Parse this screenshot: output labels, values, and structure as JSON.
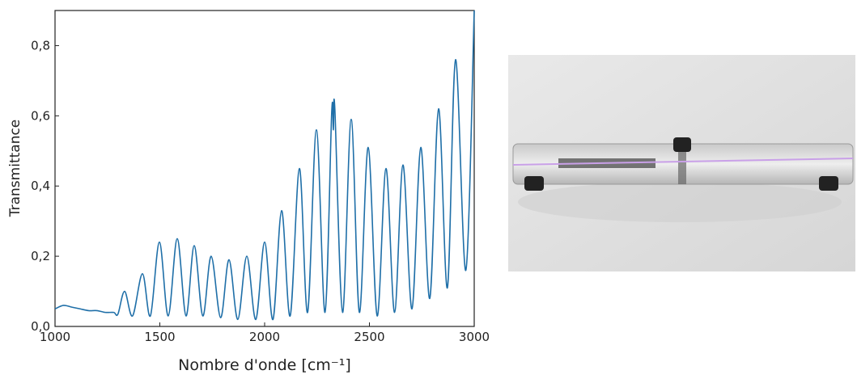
{
  "chart_data": {
    "type": "line",
    "xlabel": "Nombre d'onde [cm⁻¹]",
    "ylabel": "Transmittance",
    "x": [
      1000,
      1040,
      1080,
      1120,
      1160,
      1200,
      1240,
      1280,
      1300,
      1332,
      1370,
      1417,
      1455,
      1498,
      1540,
      1583,
      1625,
      1664,
      1705,
      1745,
      1790,
      1830,
      1872,
      1915,
      1958,
      2000,
      2040,
      2081,
      2122,
      2166,
      2205,
      2247,
      2288,
      2320,
      2328,
      2335,
      2372,
      2413,
      2452,
      2494,
      2537,
      2579,
      2620,
      2660,
      2703,
      2745,
      2788,
      2830,
      2872,
      2911,
      2960,
      3000
    ],
    "series": [
      {
        "color": "#1f6fa8",
        "values": [
          0.05,
          0.06,
          0.055,
          0.05,
          0.045,
          0.045,
          0.04,
          0.04,
          0.035,
          0.1,
          0.03,
          0.15,
          0.03,
          0.24,
          0.03,
          0.25,
          0.03,
          0.23,
          0.03,
          0.2,
          0.025,
          0.19,
          0.02,
          0.2,
          0.02,
          0.24,
          0.02,
          0.33,
          0.03,
          0.45,
          0.04,
          0.56,
          0.04,
          0.61,
          0.56,
          0.62,
          0.04,
          0.59,
          0.04,
          0.51,
          0.03,
          0.45,
          0.04,
          0.46,
          0.05,
          0.51,
          0.08,
          0.62,
          0.11,
          0.76,
          0.16,
          0.9
        ]
      }
    ],
    "xlim": [
      1000,
      3000
    ],
    "ylim": [
      0,
      0.9
    ],
    "xticks": [
      1000,
      1500,
      2000,
      2500,
      3000
    ],
    "yticks": [
      {
        "value": 0,
        "label": "0,0"
      },
      {
        "value": 0.2,
        "label": "0,2"
      },
      {
        "value": 0.4,
        "label": "0,4"
      },
      {
        "value": 0.6,
        "label": "0,6"
      },
      {
        "value": 0.8,
        "label": "0,8"
      }
    ]
  }
}
